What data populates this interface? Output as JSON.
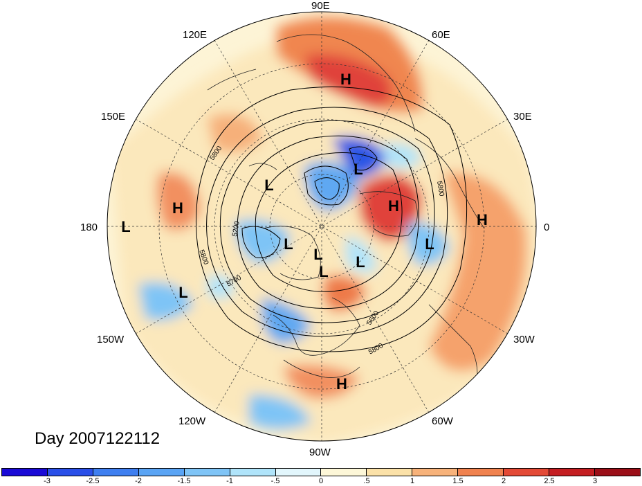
{
  "title": "Day 2007122112",
  "longitude_labels": [
    "90E",
    "60E",
    "30E",
    "0",
    "30W",
    "60W",
    "90W",
    "120W",
    "150W",
    "180",
    "150E",
    "120E"
  ],
  "contour_labels": [
    "5800",
    "5800",
    "5800",
    "5200",
    "5700",
    "5600",
    "5800"
  ],
  "pressure_systems": [
    "H",
    "H",
    "H",
    "H",
    "H",
    "L",
    "L",
    "L",
    "L",
    "L",
    "L",
    "L",
    "L",
    "L"
  ],
  "colorbar": {
    "ticks": [
      "-3",
      "-2.5",
      "-2",
      "-1.5",
      "-1",
      "-.5",
      "0",
      ".5",
      "1",
      "1.5",
      "2",
      "2.5",
      "3"
    ],
    "colors": [
      "#1a0ad6",
      "#2a4fe8",
      "#3f7ff0",
      "#5aa4f4",
      "#7fc4f6",
      "#b0e4fa",
      "#e2f6fc",
      "#fdf7d8",
      "#fbe1a8",
      "#f7b27a",
      "#f0824f",
      "#e34a36",
      "#c41e22",
      "#9b0f18"
    ]
  },
  "chart_data": {
    "type": "heatmap",
    "projection": "north polar stereographic",
    "variable": "anomaly field with geopotential height contours",
    "time": "2007122112",
    "color_scale": {
      "min": -3,
      "max": 3,
      "step": 0.5
    },
    "contour_levels": [
      5200,
      5600,
      5700,
      5800
    ]
  }
}
